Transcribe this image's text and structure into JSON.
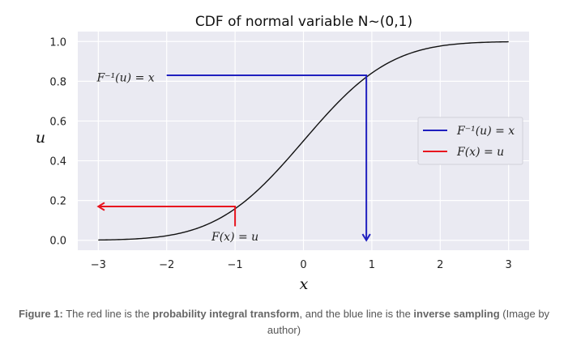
{
  "chart_data": {
    "type": "line",
    "title": "CDF of normal variable N~(0,1)",
    "xlabel": "x",
    "ylabel": "u",
    "xlim": [
      -3.3,
      3.3
    ],
    "ylim": [
      -0.05,
      1.05
    ],
    "x_ticks": [
      "−3",
      "−2",
      "−1",
      "0",
      "1",
      "2",
      "3"
    ],
    "y_ticks": [
      "0.0",
      "0.2",
      "0.4",
      "0.6",
      "0.8",
      "1.0"
    ],
    "grid": true,
    "legend_position": "right",
    "series": [
      {
        "name": "F⁻¹(u) = x",
        "color": "#1f1fbf",
        "path": [
          [
            -2.0,
            0.83
          ],
          [
            0.92,
            0.83
          ],
          [
            0.92,
            0.0
          ]
        ]
      },
      {
        "name": "F(x) = u",
        "color": "#e8141e",
        "path": [
          [
            -1.0,
            0.07
          ],
          [
            -1.0,
            0.17
          ],
          [
            -3.0,
            0.17
          ]
        ]
      }
    ],
    "curve": {
      "function": "normal_cdf",
      "x_range": [
        -3,
        3
      ],
      "color": "#111111"
    },
    "annotations": [
      {
        "text": "F⁻¹(u) = x",
        "x": -2.6,
        "y": 0.82
      },
      {
        "text": "F(x) = u",
        "x": -1.0,
        "y": 0.02
      }
    ]
  },
  "caption": {
    "prefix": "Figure 1:",
    "text1": " The red line is the ",
    "bold1": "probability integral transform",
    "text2": ", and the blue line is the ",
    "bold2": "inverse sampling",
    "text3": " (Image by",
    "line2": "author)"
  }
}
